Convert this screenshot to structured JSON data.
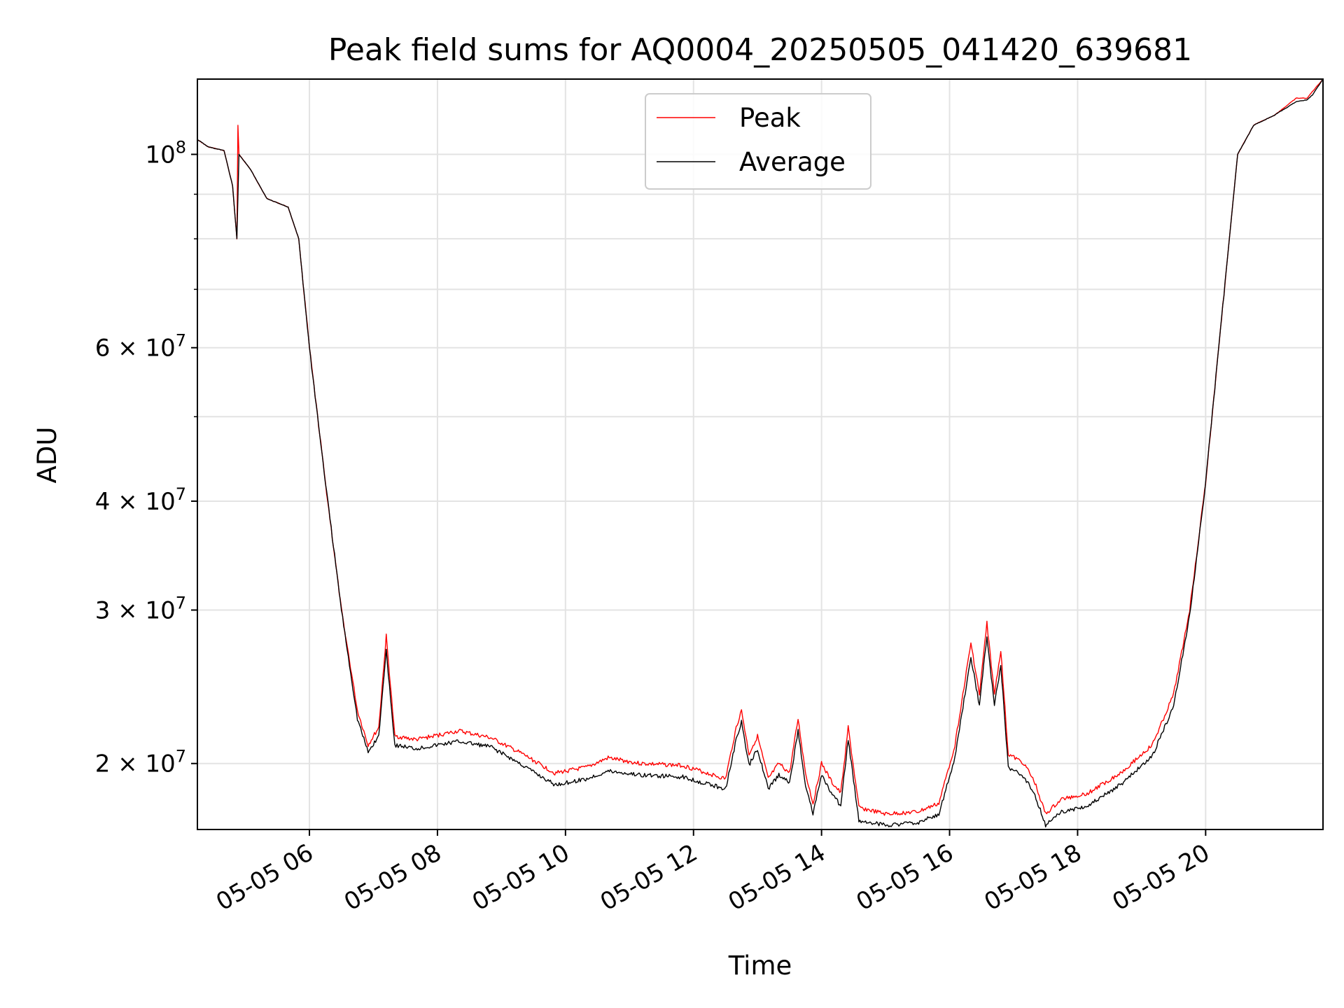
{
  "chart_data": {
    "type": "line",
    "title": "Peak field sums for AQ0004_20250505_041420_639681",
    "xlabel": "Time",
    "ylabel": "ADU",
    "yscale": "log",
    "ylim": [
      16800000,
      122000000
    ],
    "xlim": [
      "2025-05-05 04:15",
      "2025-05-05 21:50"
    ],
    "grid": true,
    "legend": {
      "position": "top-center",
      "entries": [
        "Peak",
        "Average"
      ]
    },
    "x_ticks": [
      "05-05 06",
      "05-05 08",
      "05-05 10",
      "05-05 12",
      "05-05 14",
      "05-05 16",
      "05-05 18",
      "05-05 20"
    ],
    "x_tick_times": [
      "2025-05-05 06:00",
      "2025-05-05 08:00",
      "2025-05-05 10:00",
      "2025-05-05 12:00",
      "2025-05-05 14:00",
      "2025-05-05 16:00",
      "2025-05-05 18:00",
      "2025-05-05 20:00"
    ],
    "y_ticks": [
      {
        "value": 20000000,
        "label": "2 × 10",
        "exp": "7"
      },
      {
        "value": 30000000,
        "label": "3 × 10",
        "exp": "7"
      },
      {
        "value": 40000000,
        "label": "4 × 10",
        "exp": "7"
      },
      {
        "value": 60000000,
        "label": "6 × 10",
        "exp": "7"
      },
      {
        "value": 100000000,
        "label": "10",
        "exp": "8"
      }
    ],
    "y_minor_ticks": [
      50000000,
      70000000,
      80000000,
      90000000
    ],
    "series": [
      {
        "name": "Peak",
        "color": "#ff0000",
        "points": [
          [
            "2025-05-05 04:15",
            104000000
          ],
          [
            "2025-05-05 04:25",
            102000000
          ],
          [
            "2025-05-05 04:40",
            101000000
          ],
          [
            "2025-05-05 04:48",
            92000000
          ],
          [
            "2025-05-05 04:52",
            80000000
          ],
          [
            "2025-05-05 04:53",
            108000000
          ],
          [
            "2025-05-05 04:54",
            100000000
          ],
          [
            "2025-05-05 05:05",
            96000000
          ],
          [
            "2025-05-05 05:20",
            89000000
          ],
          [
            "2025-05-05 05:40",
            87000000
          ],
          [
            "2025-05-05 05:50",
            80000000
          ],
          [
            "2025-05-05 06:00",
            60000000
          ],
          [
            "2025-05-05 06:15",
            42000000
          ],
          [
            "2025-05-05 06:30",
            30000000
          ],
          [
            "2025-05-05 06:45",
            23000000
          ],
          [
            "2025-05-05 06:55",
            21000000
          ],
          [
            "2025-05-05 07:05",
            22000000
          ],
          [
            "2025-05-05 07:12",
            28000000
          ],
          [
            "2025-05-05 07:20",
            21500000
          ],
          [
            "2025-05-05 07:40",
            21300000
          ],
          [
            "2025-05-05 08:20",
            21800000
          ],
          [
            "2025-05-05 08:50",
            21400000
          ],
          [
            "2025-05-05 09:20",
            20500000
          ],
          [
            "2025-05-05 09:50",
            19500000
          ],
          [
            "2025-05-05 10:20",
            19800000
          ],
          [
            "2025-05-05 10:40",
            20300000
          ],
          [
            "2025-05-05 11:10",
            20000000
          ],
          [
            "2025-05-05 11:50",
            19900000
          ],
          [
            "2025-05-05 12:30",
            19200000
          ],
          [
            "2025-05-05 12:40",
            22000000
          ],
          [
            "2025-05-05 12:45",
            23000000
          ],
          [
            "2025-05-05 12:52",
            20500000
          ],
          [
            "2025-05-05 13:00",
            21500000
          ],
          [
            "2025-05-05 13:10",
            19200000
          ],
          [
            "2025-05-05 13:20",
            20000000
          ],
          [
            "2025-05-05 13:30",
            19500000
          ],
          [
            "2025-05-05 13:38",
            22500000
          ],
          [
            "2025-05-05 13:45",
            19500000
          ],
          [
            "2025-05-05 13:52",
            18000000
          ],
          [
            "2025-05-05 14:00",
            20000000
          ],
          [
            "2025-05-05 14:10",
            19000000
          ],
          [
            "2025-05-05 14:18",
            18500000
          ],
          [
            "2025-05-05 14:25",
            22000000
          ],
          [
            "2025-05-05 14:35",
            17800000
          ],
          [
            "2025-05-05 15:00",
            17500000
          ],
          [
            "2025-05-05 15:30",
            17600000
          ],
          [
            "2025-05-05 15:50",
            18000000
          ],
          [
            "2025-05-05 16:05",
            21000000
          ],
          [
            "2025-05-05 16:20",
            27500000
          ],
          [
            "2025-05-05 16:28",
            24000000
          ],
          [
            "2025-05-05 16:35",
            29000000
          ],
          [
            "2025-05-05 16:42",
            24000000
          ],
          [
            "2025-05-05 16:48",
            27000000
          ],
          [
            "2025-05-05 16:55",
            20500000
          ],
          [
            "2025-05-05 17:10",
            20000000
          ],
          [
            "2025-05-05 17:20",
            19000000
          ],
          [
            "2025-05-05 17:30",
            17500000
          ],
          [
            "2025-05-05 17:45",
            18200000
          ],
          [
            "2025-05-05 18:10",
            18500000
          ],
          [
            "2025-05-05 18:40",
            19500000
          ],
          [
            "2025-05-05 19:10",
            21000000
          ],
          [
            "2025-05-05 19:30",
            24000000
          ],
          [
            "2025-05-05 19:45",
            30000000
          ],
          [
            "2025-05-05 20:00",
            42000000
          ],
          [
            "2025-05-05 20:15",
            65000000
          ],
          [
            "2025-05-05 20:30",
            100000000
          ],
          [
            "2025-05-05 20:45",
            108000000
          ],
          [
            "2025-05-05 21:05",
            111000000
          ],
          [
            "2025-05-05 21:25",
            116000000
          ],
          [
            "2025-05-05 21:35",
            116000000
          ],
          [
            "2025-05-05 21:40",
            118000000
          ],
          [
            "2025-05-05 21:50",
            122000000
          ]
        ]
      },
      {
        "name": "Average",
        "color": "#000000",
        "points": [
          [
            "2025-05-05 04:15",
            104000000
          ],
          [
            "2025-05-05 04:25",
            102000000
          ],
          [
            "2025-05-05 04:40",
            101000000
          ],
          [
            "2025-05-05 04:48",
            92000000
          ],
          [
            "2025-05-05 04:52",
            80000000
          ],
          [
            "2025-05-05 04:54",
            100000000
          ],
          [
            "2025-05-05 05:05",
            96000000
          ],
          [
            "2025-05-05 05:20",
            89000000
          ],
          [
            "2025-05-05 05:40",
            87000000
          ],
          [
            "2025-05-05 05:50",
            80000000
          ],
          [
            "2025-05-05 06:00",
            60000000
          ],
          [
            "2025-05-05 06:15",
            42000000
          ],
          [
            "2025-05-05 06:30",
            30000000
          ],
          [
            "2025-05-05 06:45",
            22500000
          ],
          [
            "2025-05-05 06:55",
            20600000
          ],
          [
            "2025-05-05 07:05",
            21500000
          ],
          [
            "2025-05-05 07:12",
            27000000
          ],
          [
            "2025-05-05 07:20",
            21000000
          ],
          [
            "2025-05-05 07:40",
            20800000
          ],
          [
            "2025-05-05 08:20",
            21200000
          ],
          [
            "2025-05-05 08:50",
            20900000
          ],
          [
            "2025-05-05 09:20",
            19900000
          ],
          [
            "2025-05-05 09:50",
            18900000
          ],
          [
            "2025-05-05 10:20",
            19200000
          ],
          [
            "2025-05-05 10:40",
            19600000
          ],
          [
            "2025-05-05 11:10",
            19400000
          ],
          [
            "2025-05-05 11:50",
            19300000
          ],
          [
            "2025-05-05 12:30",
            18700000
          ],
          [
            "2025-05-05 12:40",
            21300000
          ],
          [
            "2025-05-05 12:45",
            22300000
          ],
          [
            "2025-05-05 12:52",
            19900000
          ],
          [
            "2025-05-05 13:00",
            20800000
          ],
          [
            "2025-05-05 13:10",
            18700000
          ],
          [
            "2025-05-05 13:20",
            19400000
          ],
          [
            "2025-05-05 13:30",
            19000000
          ],
          [
            "2025-05-05 13:38",
            21800000
          ],
          [
            "2025-05-05 13:45",
            18900000
          ],
          [
            "2025-05-05 13:52",
            17500000
          ],
          [
            "2025-05-05 14:00",
            19400000
          ],
          [
            "2025-05-05 14:10",
            18400000
          ],
          [
            "2025-05-05 14:18",
            17900000
          ],
          [
            "2025-05-05 14:25",
            21300000
          ],
          [
            "2025-05-05 14:35",
            17200000
          ],
          [
            "2025-05-05 15:00",
            17000000
          ],
          [
            "2025-05-05 15:30",
            17100000
          ],
          [
            "2025-05-05 15:50",
            17500000
          ],
          [
            "2025-05-05 16:05",
            20300000
          ],
          [
            "2025-05-05 16:20",
            26500000
          ],
          [
            "2025-05-05 16:28",
            23300000
          ],
          [
            "2025-05-05 16:35",
            28000000
          ],
          [
            "2025-05-05 16:42",
            23300000
          ],
          [
            "2025-05-05 16:48",
            26000000
          ],
          [
            "2025-05-05 16:55",
            19800000
          ],
          [
            "2025-05-05 17:10",
            19300000
          ],
          [
            "2025-05-05 17:20",
            18400000
          ],
          [
            "2025-05-05 17:30",
            17000000
          ],
          [
            "2025-05-05 17:45",
            17600000
          ],
          [
            "2025-05-05 18:10",
            17900000
          ],
          [
            "2025-05-05 18:40",
            18900000
          ],
          [
            "2025-05-05 19:10",
            20400000
          ],
          [
            "2025-05-05 19:30",
            23300000
          ],
          [
            "2025-05-05 19:45",
            29500000
          ],
          [
            "2025-05-05 20:00",
            42000000
          ],
          [
            "2025-05-05 20:15",
            65000000
          ],
          [
            "2025-05-05 20:30",
            100000000
          ],
          [
            "2025-05-05 20:45",
            108000000
          ],
          [
            "2025-05-05 21:05",
            111000000
          ],
          [
            "2025-05-05 21:25",
            115000000
          ],
          [
            "2025-05-05 21:35",
            115500000
          ],
          [
            "2025-05-05 21:40",
            117000000
          ],
          [
            "2025-05-05 21:50",
            122000000
          ]
        ]
      }
    ]
  }
}
